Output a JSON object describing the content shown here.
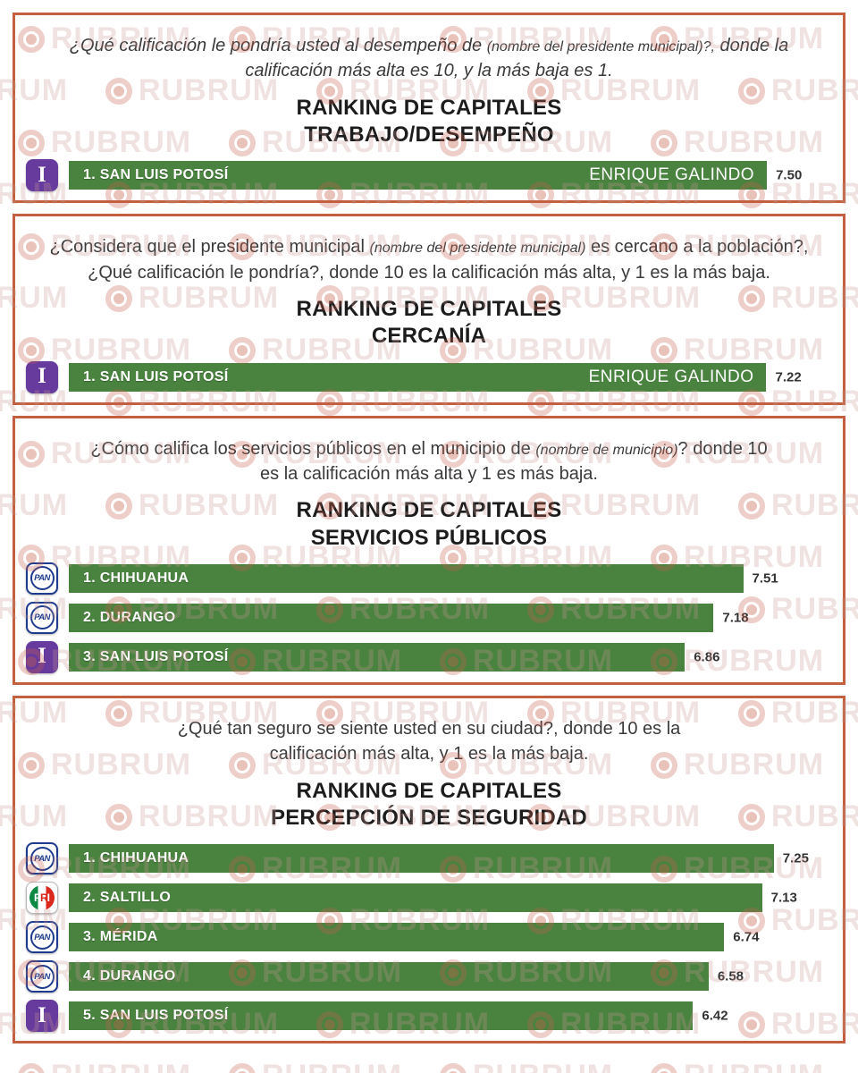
{
  "watermark": {
    "text": "RUBRUM",
    "logo": "target-ring-icon"
  },
  "colors": {
    "panel_border": "#c2603f",
    "bar_green": "#4a8340",
    "independent_purple": "#673b9e",
    "pan_blue": "#1e3b8e",
    "pri_green": "#0e8a45",
    "pri_red": "#da291c",
    "score_text": "#333333"
  },
  "party_logos": {
    "independent": "I",
    "pan": "PAN",
    "pri": "PRI"
  },
  "chart_data": [
    {
      "type": "bar",
      "orientation": "horizontal",
      "title": "RANKING DE CAPITALES",
      "subtitle": "TRABAJO/DESEMPEÑO",
      "question_segments": [
        {
          "text": "¿Qué calificación le pondría usted al desempeño de ",
          "italic": true,
          "small": false
        },
        {
          "text": "(nombre del presidente municipal)?,",
          "italic": true,
          "small": true
        },
        {
          "text": " donde la calificación más alta es 10, y la más baja es 1.",
          "italic": true,
          "small": false
        }
      ],
      "value_range": [
        1,
        10
      ],
      "scale_max": 8.2,
      "bars": [
        {
          "label": "1. SAN LUIS POTOSÍ",
          "party": "independent",
          "candidate": "ENRIQUE GALINDO",
          "value": 7.5,
          "value_label": "7.50"
        }
      ]
    },
    {
      "type": "bar",
      "orientation": "horizontal",
      "title": "RANKING DE CAPITALES",
      "subtitle": "CERCANÍA",
      "question_segments": [
        {
          "text": "¿Considera que el presidente municipal ",
          "italic": false,
          "small": false
        },
        {
          "text": "(nombre del presidente municipal)",
          "italic": true,
          "small": true
        },
        {
          "text": " es cercano a la población?, ¿Qué calificación le pondría?, donde 10 es la calificación más alta, y 1 es la más baja.",
          "italic": false,
          "small": false
        }
      ],
      "value_range": [
        1,
        10
      ],
      "scale_max": 7.9,
      "bars": [
        {
          "label": "1. SAN LUIS POTOSÍ",
          "party": "independent",
          "candidate": "ENRIQUE GALINDO",
          "value": 7.22,
          "value_label": "7.22"
        }
      ]
    },
    {
      "type": "bar",
      "orientation": "horizontal",
      "title": "RANKING DE CAPITALES",
      "subtitle": "SERVICIOS PÚBLICOS",
      "question_segments": [
        {
          "text": "¿Cómo califica los servicios públicos en el municipio de ",
          "italic": false,
          "small": false
        },
        {
          "text": "(nombre de municipio)",
          "italic": true,
          "small": true
        },
        {
          "text": "? donde 10 es la calificación más alta y 1 es más baja.",
          "italic": false,
          "small": false
        }
      ],
      "value_range": [
        1,
        10
      ],
      "scale_max": 8.5,
      "bars": [
        {
          "label": "1. CHIHUAHUA",
          "party": "pan",
          "candidate": "",
          "value": 7.51,
          "value_label": "7.51"
        },
        {
          "label": "2. DURANGO",
          "party": "pan",
          "candidate": "",
          "value": 7.18,
          "value_label": "7.18"
        },
        {
          "label": "3. SAN LUIS POTOSÍ",
          "party": "independent",
          "candidate": "",
          "value": 6.86,
          "value_label": "6.86"
        }
      ]
    },
    {
      "type": "bar",
      "orientation": "horizontal",
      "title": "RANKING DE CAPITALES",
      "subtitle": "PERCEPCIÓN DE SEGURIDAD",
      "question_segments": [
        {
          "text": "¿Qué tan seguro se siente usted en su ciudad?, donde 10 es la calificación más alta, y 1 es la más baja.",
          "italic": false,
          "small": false
        }
      ],
      "value_range": [
        1,
        10
      ],
      "scale_max": 7.85,
      "bars": [
        {
          "label": "1. CHIHUAHUA",
          "party": "pan",
          "candidate": "",
          "value": 7.25,
          "value_label": "7.25"
        },
        {
          "label": "2. SALTILLO",
          "party": "pri",
          "candidate": "",
          "value": 7.13,
          "value_label": "7.13"
        },
        {
          "label": "3. MÉRIDA",
          "party": "pan",
          "candidate": "",
          "value": 6.74,
          "value_label": "6.74"
        },
        {
          "label": "4. DURANGO",
          "party": "pan",
          "candidate": "",
          "value": 6.58,
          "value_label": "6.58"
        },
        {
          "label": "5. SAN LUIS POTOSÍ",
          "party": "independent",
          "candidate": "",
          "value": 6.42,
          "value_label": "6.42"
        }
      ]
    }
  ]
}
